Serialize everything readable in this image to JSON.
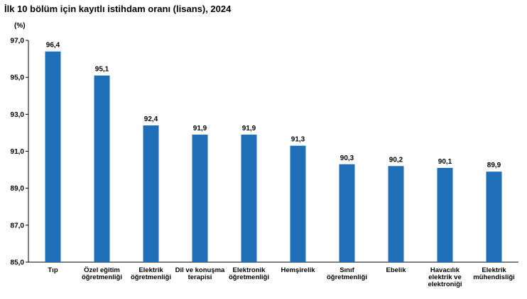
{
  "chart_data": {
    "type": "bar",
    "title": "İlk 10 bölüm için kayıtlı istihdam oranı (lisans), 2024",
    "ylabel": "(%)",
    "xlabel": "",
    "ylim": [
      85.0,
      97.0
    ],
    "yticks": [
      "85,0",
      "87,0",
      "89,0",
      "91,0",
      "93,0",
      "95,0",
      "97,0"
    ],
    "grid": false,
    "bar_color": "#1f6fb8",
    "categories": [
      [
        "Tıp"
      ],
      [
        "Özel eğitim",
        "öğretmenliği"
      ],
      [
        "Elektrik",
        "öğretmenliği"
      ],
      [
        "Dil ve konuşma",
        "terapisi"
      ],
      [
        "Elektronik",
        "öğretmenliği"
      ],
      [
        "Hemşirelik"
      ],
      [
        "Sınıf",
        "öğretmenliği"
      ],
      [
        "Ebelik"
      ],
      [
        "Havacılık",
        "elektrik ve",
        "elektroniği"
      ],
      [
        "Elektrik",
        "mühendisliği"
      ]
    ],
    "values": [
      96.4,
      95.1,
      92.4,
      91.9,
      91.9,
      91.3,
      90.3,
      90.2,
      90.1,
      89.9
    ],
    "value_labels": [
      "96,4",
      "95,1",
      "92,4",
      "91,9",
      "91,9",
      "91,3",
      "90,3",
      "90,2",
      "90,1",
      "89,9"
    ]
  }
}
